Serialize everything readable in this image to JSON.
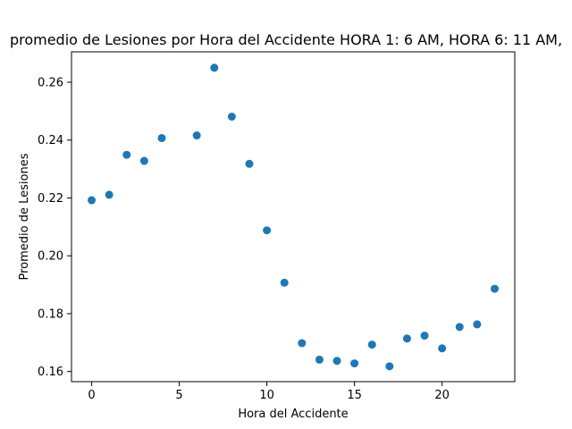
{
  "chart_data": {
    "type": "scatter",
    "title": "promedio de Lesiones por Hora del Accidente HORA 1: 6 AM, HORA 6: 11 AM,",
    "xlabel": "Hora del Accidente",
    "ylabel": "Promedio de Lesiones",
    "xlim": [
      -1.15,
      24.15
    ],
    "ylim": [
      0.1565,
      0.2705
    ],
    "xticks": [
      0,
      5,
      10,
      15,
      20
    ],
    "xtick_labels": [
      "0",
      "5",
      "10",
      "15",
      "20"
    ],
    "yticks": [
      0.16,
      0.18,
      0.2,
      0.22,
      0.24,
      0.26
    ],
    "ytick_labels": [
      "0.16",
      "0.18",
      "0.20",
      "0.22",
      "0.24",
      "0.26"
    ],
    "grid": false,
    "marker_color": "#1f77b4",
    "series": [
      {
        "x": [
          0,
          1,
          2,
          3,
          4,
          6,
          7,
          8,
          9,
          10,
          11,
          12,
          13,
          14,
          15,
          16,
          17,
          18,
          19,
          20,
          21,
          22,
          23
        ],
        "y": [
          0.2192,
          0.2211,
          0.2349,
          0.2328,
          0.2407,
          0.2416,
          0.265,
          0.2481,
          0.2318,
          0.2088,
          0.1907,
          0.1698,
          0.1641,
          0.1637,
          0.1628,
          0.1693,
          0.1618,
          0.1714,
          0.1724,
          0.168,
          0.1754,
          0.1763,
          0.1886
        ]
      }
    ]
  }
}
